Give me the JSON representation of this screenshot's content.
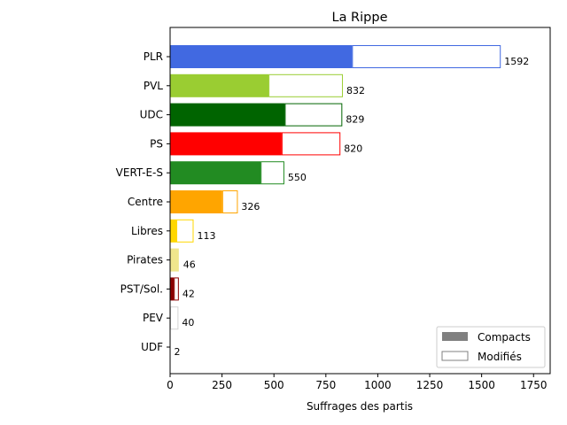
{
  "chart_data": {
    "type": "bar",
    "orientation": "horizontal",
    "stacked": true,
    "title": "La Rippe",
    "xlabel": "Suffrages des partis",
    "ylabel": "",
    "xlim": [
      0,
      1830
    ],
    "xticks": [
      0,
      250,
      500,
      750,
      1000,
      1250,
      1500,
      1750
    ],
    "categories": [
      "PLR",
      "PVL",
      "UDC",
      "PS",
      "VERT-E-S",
      "Centre",
      "Libres",
      "Pirates",
      "PST/Sol.",
      "PEV",
      "UDF"
    ],
    "colors": [
      "#4169e1",
      "#9acd32",
      "#006400",
      "#ff0000",
      "#228b22",
      "#ffa500",
      "#ffd700",
      "#f0e68c",
      "#8b0000",
      "#d3d3d3",
      "#d3d3d3"
    ],
    "series": [
      {
        "name": "Compacts",
        "values": [
          876,
          474,
          552,
          537,
          436,
          251,
          30,
          42,
          18,
          0,
          0
        ]
      },
      {
        "name": "Modifiés",
        "values": [
          716,
          358,
          277,
          283,
          114,
          75,
          83,
          4,
          24,
          40,
          2
        ]
      }
    ],
    "totals": [
      1592,
      832,
      829,
      820,
      550,
      326,
      113,
      46,
      42,
      40,
      2
    ],
    "legend": {
      "placement": "lower-right",
      "entries": [
        "Compacts",
        "Modifiés"
      ],
      "compact_swatch": "#808080",
      "modified_swatch_edge": "#808080"
    },
    "grid": false
  }
}
